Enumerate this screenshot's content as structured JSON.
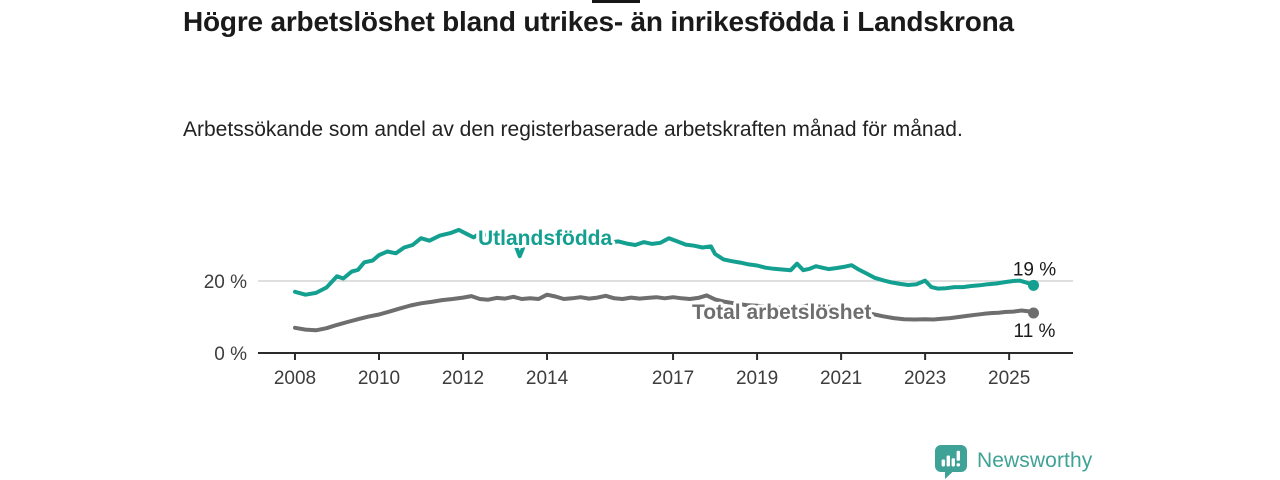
{
  "chart_data": {
    "type": "line",
    "title": "Högre arbetslöshet bland utrikes- än inrikesfödda i Landskrona",
    "subtitle": "Arbetssökande som andel av den registerbaserade arbetskraften månad för månad.",
    "unit": "%",
    "xlim": [
      2007.12,
      2026.52
    ],
    "ylim": [
      0,
      43
    ],
    "grid": "horizontal-gridline-at-20-only",
    "legend": "inline-series-labels",
    "x_ticks": [
      {
        "value": 2008,
        "label": "2008"
      },
      {
        "value": 2010,
        "label": "2010"
      },
      {
        "value": 2012,
        "label": "2012"
      },
      {
        "value": 2014,
        "label": "2014"
      },
      {
        "value": 2017,
        "label": "2017"
      },
      {
        "value": 2019,
        "label": "2019"
      },
      {
        "value": 2021,
        "label": "2021"
      },
      {
        "value": 2023,
        "label": "2023"
      },
      {
        "value": 2025,
        "label": "2025"
      }
    ],
    "y_ticks": [
      {
        "value": 0,
        "label": "0 %"
      },
      {
        "value": 20,
        "label": "20 %"
      }
    ],
    "series": [
      {
        "name": "Utlandsfödda",
        "color": "#14a090",
        "end_label": "19 %",
        "end_value": 19,
        "points": [
          [
            2008.0,
            17.0
          ],
          [
            2008.25,
            16.2
          ],
          [
            2008.5,
            16.7
          ],
          [
            2008.75,
            18.2
          ],
          [
            2009.0,
            21.3
          ],
          [
            2009.15,
            20.7
          ],
          [
            2009.35,
            22.6
          ],
          [
            2009.5,
            23.1
          ],
          [
            2009.65,
            25.2
          ],
          [
            2009.85,
            25.7
          ],
          [
            2010.0,
            27.2
          ],
          [
            2010.2,
            28.2
          ],
          [
            2010.4,
            27.7
          ],
          [
            2010.6,
            29.3
          ],
          [
            2010.8,
            30.0
          ],
          [
            2011.0,
            31.9
          ],
          [
            2011.2,
            31.2
          ],
          [
            2011.45,
            32.6
          ],
          [
            2011.7,
            33.3
          ],
          [
            2011.9,
            34.2
          ],
          [
            2012.1,
            33.0
          ],
          [
            2012.25,
            32.1
          ],
          [
            2012.4,
            33.2
          ],
          [
            2012.6,
            32.6
          ],
          [
            2012.8,
            33.0
          ],
          [
            2013.0,
            32.2
          ],
          [
            2013.2,
            31.4
          ],
          [
            2013.35,
            26.9
          ],
          [
            2013.5,
            31.2
          ],
          [
            2013.7,
            31.9
          ],
          [
            2013.9,
            31.4
          ],
          [
            2014.1,
            31.9
          ],
          [
            2014.3,
            31.2
          ],
          [
            2014.5,
            31.7
          ],
          [
            2014.7,
            31.1
          ],
          [
            2014.9,
            31.5
          ],
          [
            2015.1,
            30.8
          ],
          [
            2015.3,
            31.2
          ],
          [
            2015.5,
            30.7
          ],
          [
            2015.7,
            31.0
          ],
          [
            2015.9,
            30.4
          ],
          [
            2016.1,
            30.0
          ],
          [
            2016.3,
            30.8
          ],
          [
            2016.5,
            30.3
          ],
          [
            2016.7,
            30.6
          ],
          [
            2016.9,
            31.9
          ],
          [
            2017.1,
            31.0
          ],
          [
            2017.3,
            30.1
          ],
          [
            2017.5,
            29.8
          ],
          [
            2017.7,
            29.3
          ],
          [
            2017.9,
            29.6
          ],
          [
            2018.0,
            27.5
          ],
          [
            2018.2,
            26.0
          ],
          [
            2018.4,
            25.5
          ],
          [
            2018.6,
            25.1
          ],
          [
            2018.8,
            24.6
          ],
          [
            2019.0,
            24.3
          ],
          [
            2019.2,
            23.7
          ],
          [
            2019.4,
            23.4
          ],
          [
            2019.6,
            23.2
          ],
          [
            2019.8,
            23.0
          ],
          [
            2019.95,
            24.8
          ],
          [
            2020.1,
            23.0
          ],
          [
            2020.25,
            23.4
          ],
          [
            2020.4,
            24.1
          ],
          [
            2020.55,
            23.7
          ],
          [
            2020.7,
            23.3
          ],
          [
            2020.9,
            23.6
          ],
          [
            2021.1,
            24.0
          ],
          [
            2021.25,
            24.4
          ],
          [
            2021.4,
            23.3
          ],
          [
            2021.6,
            22.1
          ],
          [
            2021.8,
            20.9
          ],
          [
            2022.0,
            20.2
          ],
          [
            2022.2,
            19.6
          ],
          [
            2022.4,
            19.2
          ],
          [
            2022.6,
            18.9
          ],
          [
            2022.8,
            19.1
          ],
          [
            2023.0,
            20.1
          ],
          [
            2023.15,
            18.3
          ],
          [
            2023.3,
            17.9
          ],
          [
            2023.5,
            18.0
          ],
          [
            2023.7,
            18.3
          ],
          [
            2023.9,
            18.3
          ],
          [
            2024.1,
            18.6
          ],
          [
            2024.3,
            18.8
          ],
          [
            2024.5,
            19.1
          ],
          [
            2024.7,
            19.3
          ],
          [
            2024.9,
            19.7
          ],
          [
            2025.1,
            20.0
          ],
          [
            2025.25,
            20.1
          ],
          [
            2025.4,
            19.6
          ],
          [
            2025.58,
            18.8
          ]
        ]
      },
      {
        "name": "Total arbetslöshet",
        "color": "#6e6e6e",
        "end_label": "11 %",
        "end_value": 11,
        "points": [
          [
            2008.0,
            7.0
          ],
          [
            2008.25,
            6.5
          ],
          [
            2008.5,
            6.3
          ],
          [
            2008.75,
            6.9
          ],
          [
            2009.0,
            7.8
          ],
          [
            2009.25,
            8.6
          ],
          [
            2009.5,
            9.4
          ],
          [
            2009.75,
            10.1
          ],
          [
            2010.0,
            10.7
          ],
          [
            2010.25,
            11.5
          ],
          [
            2010.5,
            12.4
          ],
          [
            2010.75,
            13.2
          ],
          [
            2011.0,
            13.8
          ],
          [
            2011.25,
            14.2
          ],
          [
            2011.5,
            14.7
          ],
          [
            2011.75,
            15.0
          ],
          [
            2012.0,
            15.4
          ],
          [
            2012.2,
            15.8
          ],
          [
            2012.4,
            15.0
          ],
          [
            2012.6,
            14.8
          ],
          [
            2012.8,
            15.3
          ],
          [
            2013.0,
            15.1
          ],
          [
            2013.2,
            15.6
          ],
          [
            2013.4,
            15.0
          ],
          [
            2013.6,
            15.2
          ],
          [
            2013.8,
            15.0
          ],
          [
            2014.0,
            16.2
          ],
          [
            2014.2,
            15.7
          ],
          [
            2014.4,
            15.0
          ],
          [
            2014.6,
            15.2
          ],
          [
            2014.8,
            15.5
          ],
          [
            2015.0,
            15.1
          ],
          [
            2015.2,
            15.4
          ],
          [
            2015.4,
            15.9
          ],
          [
            2015.6,
            15.2
          ],
          [
            2015.8,
            15.0
          ],
          [
            2016.0,
            15.4
          ],
          [
            2016.2,
            15.1
          ],
          [
            2016.4,
            15.3
          ],
          [
            2016.6,
            15.5
          ],
          [
            2016.8,
            15.2
          ],
          [
            2017.0,
            15.5
          ],
          [
            2017.2,
            15.2
          ],
          [
            2017.4,
            15.0
          ],
          [
            2017.6,
            15.3
          ],
          [
            2017.8,
            16.0
          ],
          [
            2018.0,
            14.9
          ],
          [
            2018.25,
            14.2
          ],
          [
            2018.5,
            13.7
          ],
          [
            2018.75,
            13.3
          ],
          [
            2019.0,
            13.1
          ],
          [
            2019.25,
            12.8
          ],
          [
            2019.5,
            12.6
          ],
          [
            2019.75,
            12.5
          ],
          [
            2020.0,
            12.7
          ],
          [
            2020.25,
            13.3
          ],
          [
            2020.5,
            13.0
          ],
          [
            2020.75,
            12.8
          ],
          [
            2021.0,
            12.4
          ],
          [
            2021.25,
            12.0
          ],
          [
            2021.5,
            11.4
          ],
          [
            2021.75,
            10.8
          ],
          [
            2022.0,
            10.2
          ],
          [
            2022.25,
            9.7
          ],
          [
            2022.5,
            9.4
          ],
          [
            2022.75,
            9.3
          ],
          [
            2023.0,
            9.4
          ],
          [
            2023.2,
            9.3
          ],
          [
            2023.4,
            9.5
          ],
          [
            2023.6,
            9.7
          ],
          [
            2023.8,
            10.0
          ],
          [
            2024.0,
            10.3
          ],
          [
            2024.2,
            10.6
          ],
          [
            2024.4,
            10.9
          ],
          [
            2024.6,
            11.1
          ],
          [
            2024.75,
            11.2
          ],
          [
            2024.9,
            11.4
          ],
          [
            2025.1,
            11.5
          ],
          [
            2025.3,
            11.8
          ],
          [
            2025.45,
            11.6
          ],
          [
            2025.58,
            11.1
          ]
        ]
      }
    ]
  },
  "colors": {
    "accent_teal": "#14a090",
    "total_gray": "#6e6e6e",
    "grid": "#cccccc",
    "axis": "#2b2b2b",
    "title_text": "#1a1a1a",
    "body_text": "#222222",
    "tick_text": "#3d3d3d",
    "logo_teal": "#3fa296"
  },
  "footer": {
    "brand": "Newsworthy"
  }
}
